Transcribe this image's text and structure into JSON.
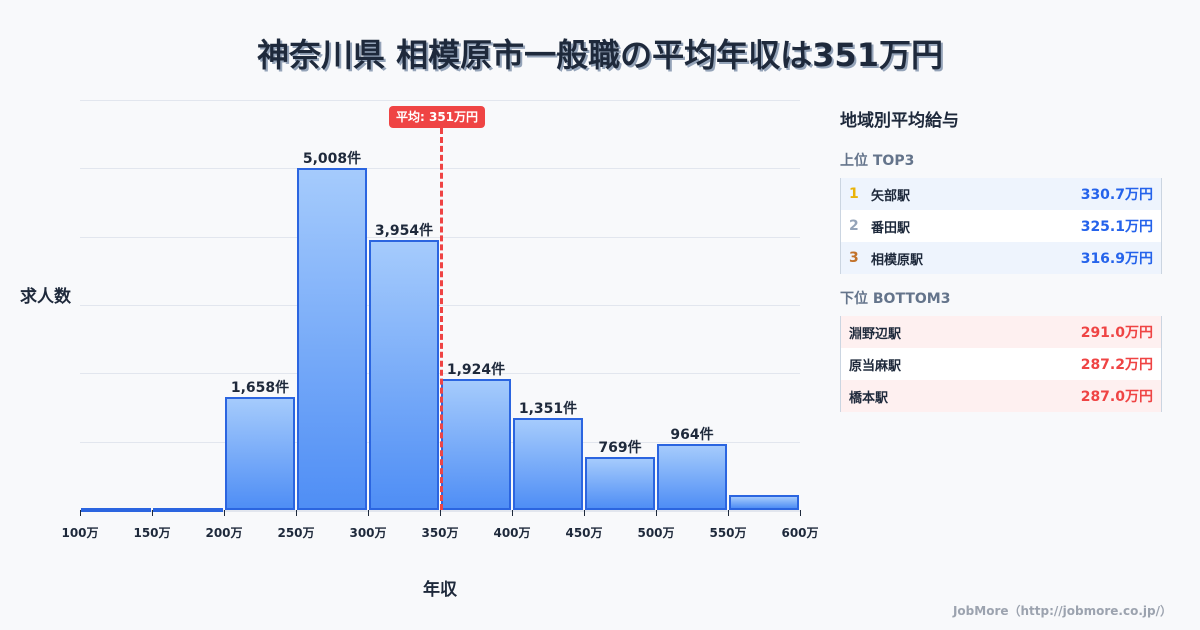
{
  "title": "神奈川県 相模原市一般職の平均年収は351万円",
  "chart_data": {
    "type": "bar",
    "title": "神奈川県 相模原市一般職の平均年収は351万円",
    "xlabel": "年収",
    "ylabel": "求人数",
    "categories": [
      "100-150万",
      "150-200万",
      "200-250万",
      "250-300万",
      "300-350万",
      "350-400万",
      "400-450万",
      "450-500万",
      "500-550万",
      "550-600万"
    ],
    "x_ticks": [
      "100万",
      "150万",
      "200万",
      "250万",
      "300万",
      "350万",
      "400万",
      "450万",
      "500万",
      "550万",
      "600万"
    ],
    "values": [
      10,
      15,
      1658,
      5008,
      3954,
      1924,
      1351,
      769,
      964,
      220
    ],
    "value_labels": [
      "",
      "",
      "1,658件",
      "5,008件",
      "3,954件",
      "1,924件",
      "1,351件",
      "769件",
      "964件",
      ""
    ],
    "ylim": [
      0,
      6000
    ],
    "grid": true,
    "annotations": [
      {
        "type": "vline",
        "x": 351,
        "label": "平均: 351万円",
        "color": "#ef4444"
      }
    ],
    "bar_color": "#4f8ef5",
    "bar_border": "#2b65e0"
  },
  "mean_badge": "平均: 351万円",
  "panel": {
    "title": "地域別平均給与",
    "top_label": "上位 TOP3",
    "top": [
      {
        "rank": "1",
        "name": "矢部駅",
        "value": "330.7万円",
        "rank_color": "#eab308"
      },
      {
        "rank": "2",
        "name": "番田駅",
        "value": "325.1万円",
        "rank_color": "#94a3b8"
      },
      {
        "rank": "3",
        "name": "相模原駅",
        "value": "316.9万円",
        "rank_color": "#c2722a"
      }
    ],
    "bottom_label": "下位 BOTTOM3",
    "bottom": [
      {
        "name": "淵野辺駅",
        "value": "291.0万円"
      },
      {
        "name": "原当麻駅",
        "value": "287.2万円"
      },
      {
        "name": "橋本駅",
        "value": "287.0万円"
      }
    ]
  },
  "footer": "JobMore（http://jobmore.co.jp/）"
}
